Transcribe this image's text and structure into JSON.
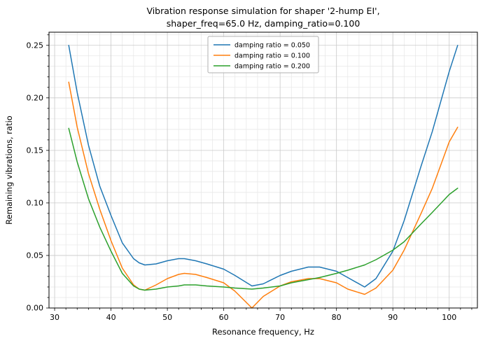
{
  "title_line1": "Vibration response simulation for shaper '2-hump EI',",
  "title_line2": "shaper_freq=65.0 Hz, damping_ratio=0.100",
  "chart_data": {
    "type": "line",
    "title": "Vibration response simulation for shaper '2-hump EI', shaper_freq=65.0 Hz, damping_ratio=0.100",
    "xlabel": "Resonance frequency, Hz",
    "ylabel": "Remaining vibrations, ratio",
    "xlim": [
      29,
      105
    ],
    "ylim": [
      0,
      0.2625
    ],
    "x_ticks": [
      30,
      40,
      50,
      60,
      70,
      80,
      90,
      100
    ],
    "x_tick_labels": [
      "30",
      "40",
      "50",
      "60",
      "70",
      "80",
      "90",
      "100"
    ],
    "y_ticks": [
      0.0,
      0.05,
      0.1,
      0.15,
      0.2,
      0.25
    ],
    "y_tick_labels": [
      "0.00",
      "0.05",
      "0.10",
      "0.15",
      "0.20",
      "0.25"
    ],
    "grid": "major+minor",
    "legend_position": "upper center",
    "x": [
      32.5,
      34,
      36,
      38,
      40,
      42,
      44,
      45,
      46,
      48,
      50,
      52,
      53,
      55,
      57,
      60,
      62,
      65,
      67,
      70,
      72,
      75,
      77,
      80,
      82,
      85,
      87,
      90,
      92,
      95,
      97,
      100,
      101.5
    ],
    "series": [
      {
        "name": "damping ratio = 0.050",
        "color": "#1f77b4",
        "values": [
          0.25,
          0.205,
          0.155,
          0.116,
          0.088,
          0.062,
          0.047,
          0.043,
          0.041,
          0.042,
          0.045,
          0.047,
          0.047,
          0.045,
          0.042,
          0.037,
          0.031,
          0.021,
          0.023,
          0.031,
          0.035,
          0.039,
          0.039,
          0.035,
          0.029,
          0.02,
          0.028,
          0.054,
          0.083,
          0.135,
          0.168,
          0.225,
          0.25
        ]
      },
      {
        "name": "damping ratio = 0.100",
        "color": "#ff7f0e",
        "values": [
          0.215,
          0.172,
          0.128,
          0.094,
          0.064,
          0.038,
          0.022,
          0.018,
          0.017,
          0.022,
          0.028,
          0.032,
          0.033,
          0.032,
          0.029,
          0.024,
          0.016,
          0.0,
          0.011,
          0.021,
          0.025,
          0.028,
          0.028,
          0.024,
          0.018,
          0.013,
          0.019,
          0.036,
          0.055,
          0.09,
          0.114,
          0.158,
          0.172
        ]
      },
      {
        "name": "damping ratio = 0.200",
        "color": "#2ca02c",
        "values": [
          0.171,
          0.139,
          0.104,
          0.077,
          0.054,
          0.033,
          0.021,
          0.018,
          0.017,
          0.018,
          0.02,
          0.021,
          0.022,
          0.022,
          0.021,
          0.02,
          0.019,
          0.018,
          0.019,
          0.021,
          0.024,
          0.027,
          0.029,
          0.033,
          0.036,
          0.041,
          0.046,
          0.055,
          0.063,
          0.08,
          0.091,
          0.108,
          0.114
        ]
      }
    ]
  }
}
